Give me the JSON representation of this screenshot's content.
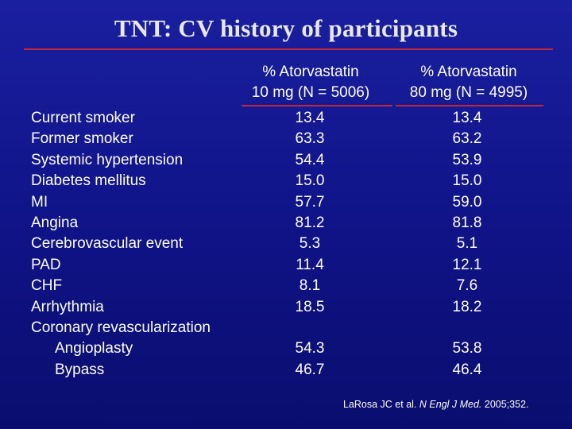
{
  "title": "TNT: CV history of participants",
  "columns": [
    {
      "line1": "% Atorvastatin",
      "line2": "10 mg (N = 5006)"
    },
    {
      "line1": "% Atorvastatin",
      "line2": "80 mg (N = 4995)"
    }
  ],
  "rows": [
    {
      "label": "Current smoker",
      "v1": "13.4",
      "v2": "13.4"
    },
    {
      "label": "Former smoker",
      "v1": "63.3",
      "v2": "63.2"
    },
    {
      "label": "Systemic hypertension",
      "v1": "54.4",
      "v2": "53.9"
    },
    {
      "label": "Diabetes mellitus",
      "v1": "15.0",
      "v2": "15.0"
    },
    {
      "label": "MI",
      "v1": "57.7",
      "v2": "59.0"
    },
    {
      "label": "Angina",
      "v1": "81.2",
      "v2": "81.8"
    },
    {
      "label": "Cerebrovascular event",
      "v1": "5.3",
      "v2": "5.1"
    },
    {
      "label": "PAD",
      "v1": "11.4",
      "v2": "12.1"
    },
    {
      "label": "CHF",
      "v1": "8.1",
      "v2": "7.6"
    },
    {
      "label": "Arrhythmia",
      "v1": "18.5",
      "v2": "18.2"
    },
    {
      "label": "Coronary revascularization",
      "v1": "",
      "v2": ""
    },
    {
      "label": "Angioplasty",
      "v1": "54.3",
      "v2": "53.8"
    },
    {
      "label": "Bypass",
      "v1": "46.7",
      "v2": "46.4"
    }
  ],
  "citation": {
    "authors": "LaRosa JC et al.",
    "journal": "N Engl J Med.",
    "ref": "2005;352."
  }
}
